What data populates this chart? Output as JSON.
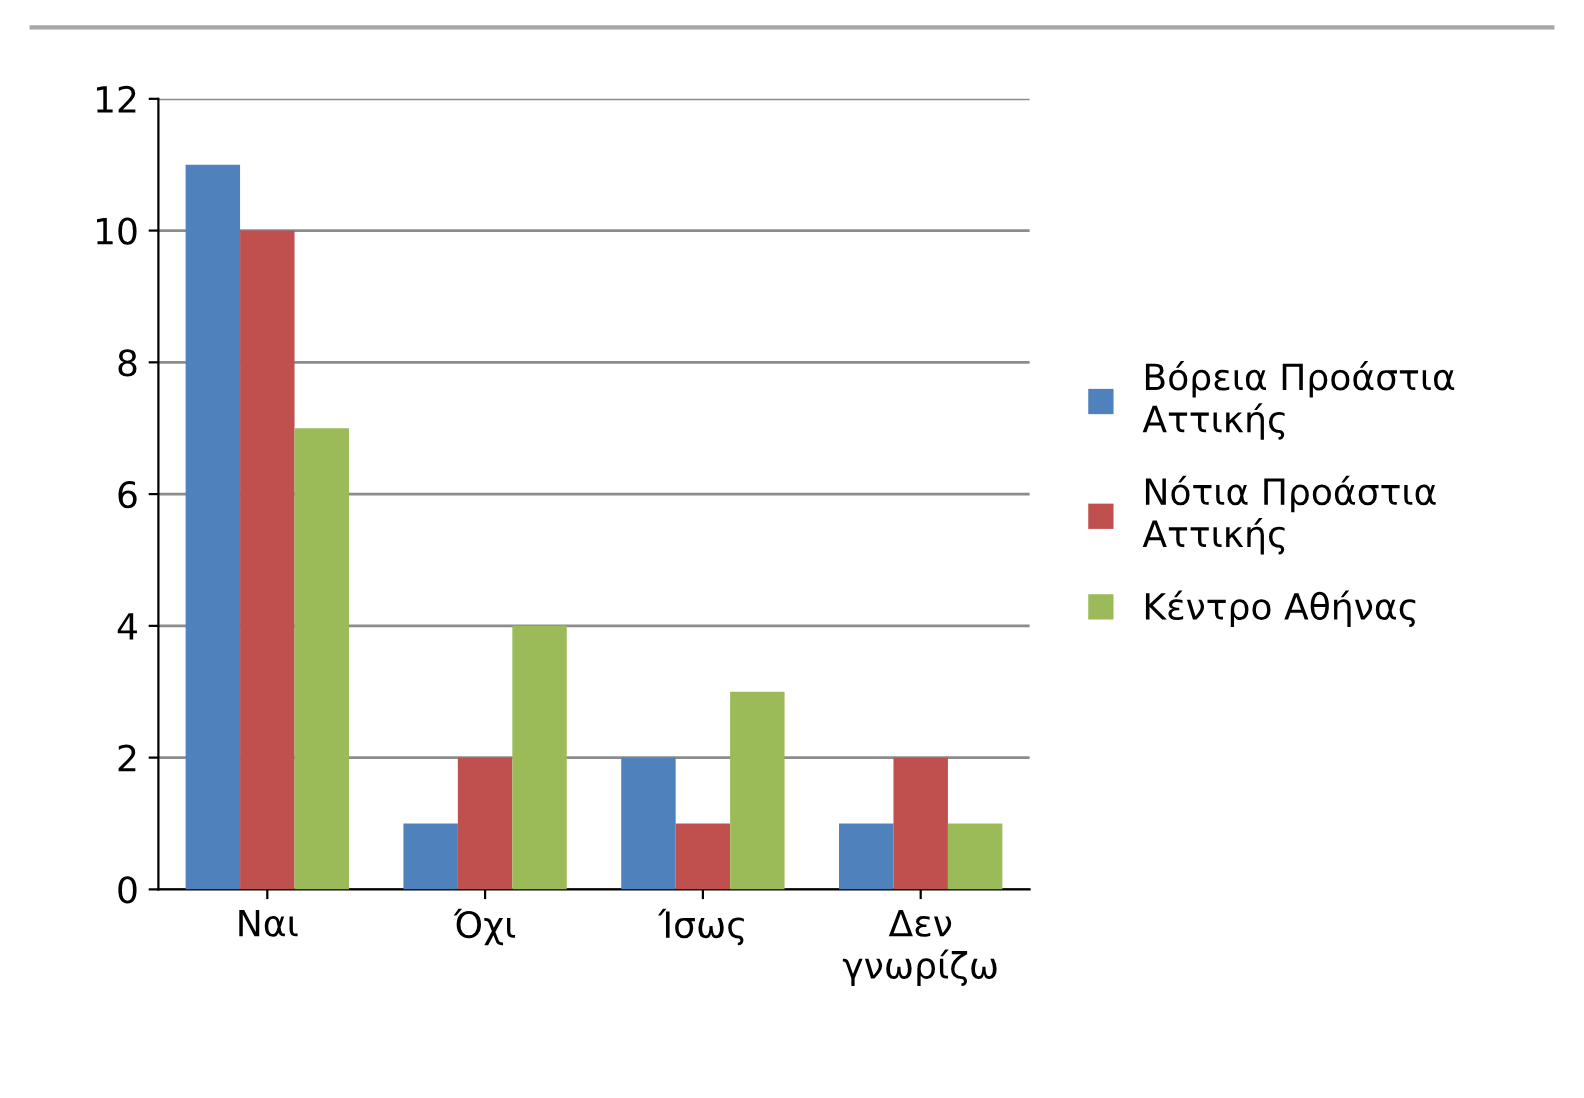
{
  "chart_data": {
    "type": "bar",
    "categories": [
      "Ναι",
      "Όχι",
      "Ίσως",
      "Δεν γνωρίζω"
    ],
    "series": [
      {
        "name": "Βόρεια Προάστια Αττικής",
        "color": "#4f81bd",
        "values": [
          11,
          1,
          2,
          1
        ]
      },
      {
        "name": "Νότια Προάστια Αττικής",
        "color": "#c0504d",
        "values": [
          10,
          2,
          1,
          2
        ]
      },
      {
        "name": "Κέντρο Αθήνας",
        "color": "#9bbb59",
        "values": [
          7,
          4,
          3,
          1
        ]
      }
    ],
    "ylim": [
      0,
      12
    ],
    "yticks": [
      0,
      2,
      4,
      6,
      8,
      10,
      12
    ],
    "grid": "y",
    "legend": "right"
  }
}
